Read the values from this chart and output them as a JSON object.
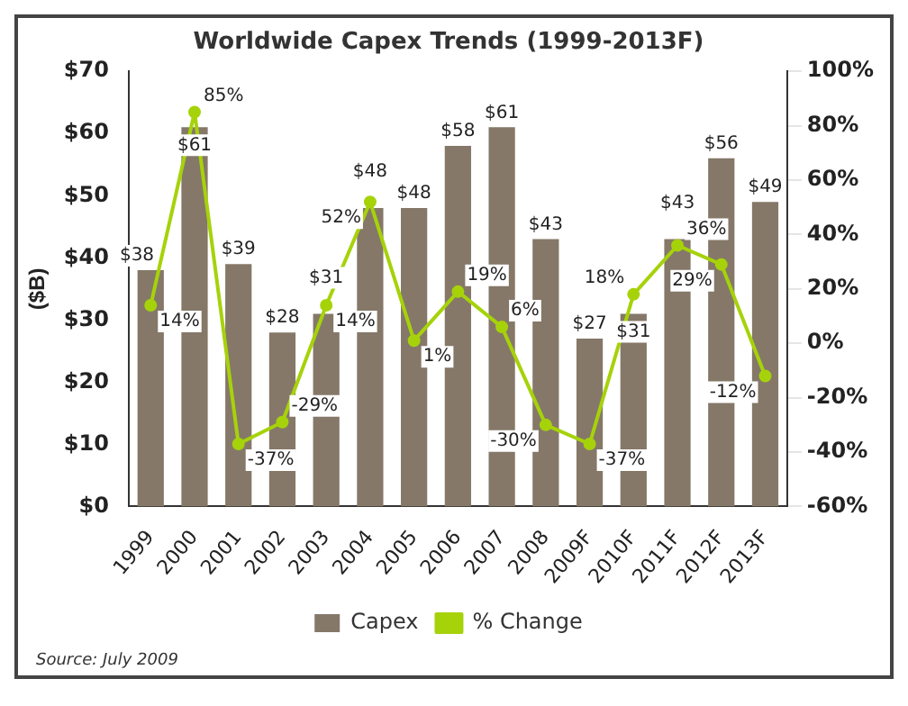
{
  "chart_data": {
    "type": "bar",
    "title": "Worldwide Capex Trends (1999-2013F)",
    "ylabel": "($B)",
    "categories": [
      "1999",
      "2000",
      "2001",
      "2002",
      "2003",
      "2004",
      "2005",
      "2006",
      "2007",
      "2008",
      "2009F",
      "2010F",
      "2011F",
      "2012F",
      "2013F"
    ],
    "series": [
      {
        "name": "Capex",
        "color": "#857868",
        "values": [
          38,
          61,
          39,
          28,
          31,
          48,
          48,
          58,
          61,
          43,
          27,
          31,
          43,
          56,
          49
        ],
        "value_labels": [
          "$38",
          "$61",
          "$39",
          "$28",
          "$31",
          "$48",
          "$48",
          "$58",
          "$61",
          "$43",
          "$27",
          "$31",
          "$43",
          "$56",
          "$49"
        ]
      },
      {
        "name": "% Change",
        "type": "line",
        "axis": "y2",
        "color": "#a6d20a",
        "values": [
          14,
          85,
          -37,
          -29,
          14,
          52,
          1,
          19,
          6,
          -30,
          -37,
          18,
          36,
          29,
          -12
        ],
        "value_labels": [
          "14%",
          "85%",
          "-37%",
          "-29%",
          "14%",
          "52%",
          "1%",
          "19%",
          "6%",
          "-30%",
          "-37%",
          "18%",
          "36%",
          "29%",
          "-12%"
        ]
      }
    ],
    "ylim": [
      0,
      70
    ],
    "yticks": [
      {
        "value": 0,
        "label": "$0"
      },
      {
        "value": 10,
        "label": "$10"
      },
      {
        "value": 20,
        "label": "$20"
      },
      {
        "value": 30,
        "label": "$30"
      },
      {
        "value": 40,
        "label": "$40"
      },
      {
        "value": 50,
        "label": "$50"
      },
      {
        "value": 60,
        "label": "$60"
      },
      {
        "value": 70,
        "label": "$70"
      }
    ],
    "y2lim": [
      -60,
      100
    ],
    "y2ticks": [
      {
        "value": -60,
        "label": "-60%"
      },
      {
        "value": -40,
        "label": "-40%"
      },
      {
        "value": -20,
        "label": "-20%"
      },
      {
        "value": 0,
        "label": "0%"
      },
      {
        "value": 20,
        "label": "20%"
      },
      {
        "value": 40,
        "label": "40%"
      },
      {
        "value": 60,
        "label": "60%"
      },
      {
        "value": 80,
        "label": "80%"
      },
      {
        "value": 100,
        "label": "100%"
      }
    ],
    "marker": "circle",
    "grid": false,
    "legend": "bottom",
    "annotations": [
      "Source: July 2009"
    ]
  }
}
